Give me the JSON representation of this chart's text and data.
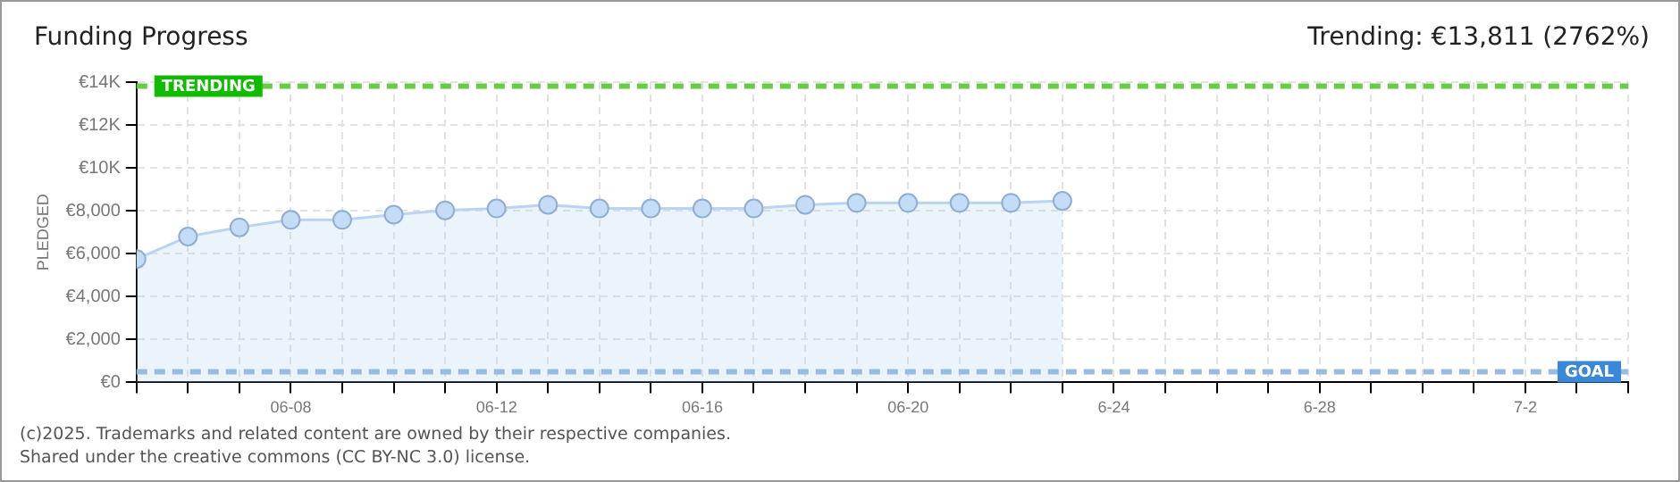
{
  "chart_data": {
    "type": "area",
    "title": "Funding Progress",
    "subtitle": "Trending: €13,811 (2762%)",
    "ylabel": "PLEDGED",
    "x": [
      "--06-05",
      "--06-06",
      "--06-07",
      "--06-08",
      "--06-09",
      "--06-10",
      "--06-11",
      "--06-12",
      "--06-13",
      "--06-14",
      "--06-15",
      "--06-16",
      "--06-17",
      "--06-18",
      "--06-19",
      "--06-20",
      "--06-21",
      "--06-22",
      "--06-23"
    ],
    "series": [
      {
        "color": "#b8d4f2",
        "values": [
          5750,
          6800,
          7230,
          7580,
          7580,
          7820,
          8020,
          8110,
          8280,
          8110,
          8110,
          8110,
          8110,
          8280,
          8370,
          8370,
          8370,
          8370,
          8460
        ]
      }
    ],
    "xlim": [
      "--06-05",
      "--07-04"
    ],
    "xticks": [
      {
        "value": "--06-05",
        "label": null
      },
      {
        "value": "--06-06",
        "label": null
      },
      {
        "value": "--06-07",
        "label": null
      },
      {
        "value": "--06-08",
        "label": "06-08"
      },
      {
        "value": "--06-09",
        "label": null
      },
      {
        "value": "--06-10",
        "label": null
      },
      {
        "value": "--06-11",
        "label": null
      },
      {
        "value": "--06-12",
        "label": "06-12"
      },
      {
        "value": "--06-13",
        "label": null
      },
      {
        "value": "--06-14",
        "label": null
      },
      {
        "value": "--06-15",
        "label": null
      },
      {
        "value": "--06-16",
        "label": "06-16"
      },
      {
        "value": "--06-17",
        "label": null
      },
      {
        "value": "--06-18",
        "label": null
      },
      {
        "value": "--06-19",
        "label": null
      },
      {
        "value": "--06-20",
        "label": "06-20"
      },
      {
        "value": "--06-21",
        "label": null
      },
      {
        "value": "--06-22",
        "label": null
      },
      {
        "value": "--06-23",
        "label": null
      },
      {
        "value": "--06-24",
        "label": "6-24"
      },
      {
        "value": "--06-25",
        "label": null
      },
      {
        "value": "--06-26",
        "label": null
      },
      {
        "value": "--06-27",
        "label": null
      },
      {
        "value": "--06-28",
        "label": "6-28"
      },
      {
        "value": "--06-29",
        "label": null
      },
      {
        "value": "--06-30",
        "label": null
      },
      {
        "value": "--07-01",
        "label": null
      },
      {
        "value": "--07-02",
        "label": "7-2"
      },
      {
        "value": "--07-03",
        "label": null
      },
      {
        "value": "--07-04",
        "label": null
      }
    ],
    "ylim": [
      0,
      14000
    ],
    "yticks": [
      {
        "value": 0,
        "label": "€0"
      },
      {
        "value": 2000,
        "label": "€2,000"
      },
      {
        "value": 4000,
        "label": "€4,000"
      },
      {
        "value": 6000,
        "label": "€6,000"
      },
      {
        "value": 8000,
        "label": "€8,000"
      },
      {
        "value": 10000,
        "label": "€10K"
      },
      {
        "value": 12000,
        "label": "€12K"
      },
      {
        "value": 14000,
        "label": "€14K"
      }
    ],
    "ref_lines": [
      {
        "axis": "y",
        "value": 13811,
        "label": "TRENDING",
        "color": "#66cc44",
        "line_style": "dashed"
      },
      {
        "axis": "y",
        "value": 500,
        "label": "GOAL",
        "color": "#99bbe0",
        "line_style": "dashed"
      }
    ],
    "grid": true,
    "legend": false,
    "marker": "circle",
    "line_style": "solid",
    "annotations": [
      "(c)2025. Trademarks and related content are owned by their respective companies.",
      "Shared under the creative commons (CC BY-NC 3.0) license."
    ]
  }
}
